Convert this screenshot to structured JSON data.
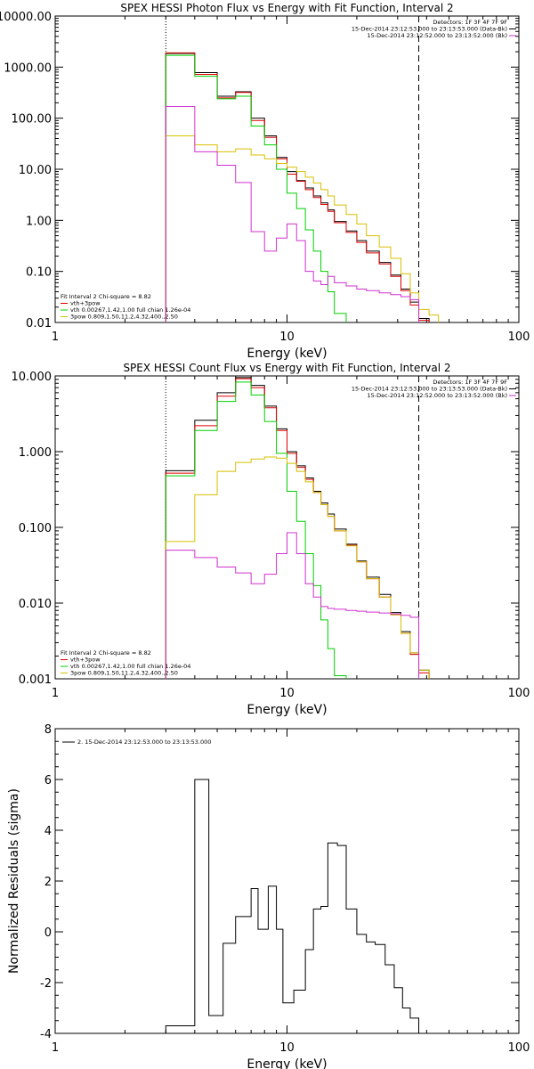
{
  "chart_data": [
    {
      "type": "line",
      "title": "SPEX HESSI Photon Flux vs Energy with Fit Function, Interval 2",
      "xlabel": "Energy (keV)",
      "ylabel": "",
      "xscale": "log",
      "yscale": "log",
      "xlim": [
        1,
        100
      ],
      "ylim": [
        0.01,
        10000
      ],
      "x_ticks": [
        "1",
        "10",
        "100"
      ],
      "y_ticks": [
        "0.01",
        "0.10",
        "1.00",
        "10.00",
        "100.00",
        "1000.00",
        "10000.00"
      ],
      "legend_top_right": [
        "Detectors: 1F 3F 4F 7F 9F",
        "15-Dec-2014 23:12:53.000 to 23:13:53.000 (Data-Bk)",
        "15-Dec-2014 23:12:52.000 to 23:13:52.000 (Bk)"
      ],
      "legend_top_right_colors": [
        "#000000",
        "#000000",
        "#d030d0"
      ],
      "fit_legend": [
        "Fit Interval 2   Chi-square = 8.82",
        "vth+3pow",
        "vth 0.00267,1.42,1.00  full chian 1.26e-04",
        "3pow 0.809,1.50,11.2,4.32,400.,2.50"
      ],
      "fit_legend_colors": [
        "",
        "#e00000",
        "#00d000",
        "#d8c000"
      ],
      "vlines": [
        3,
        37
      ],
      "edges": [
        3,
        4,
        5,
        6,
        7,
        8,
        9,
        10,
        11,
        12,
        13,
        14,
        15,
        16,
        18,
        20,
        22,
        25,
        28,
        31,
        34,
        37,
        41,
        45
      ],
      "series": [
        {
          "name": "Data-Bk",
          "color": "#000000",
          "values": [
            1850,
            780,
            270,
            330,
            100,
            45,
            17,
            9,
            6,
            4.3,
            3.0,
            2.2,
            1.6,
            0.95,
            0.62,
            0.4,
            0.25,
            0.15,
            0.085,
            0.045,
            0.025,
            0.012
          ]
        },
        {
          "name": "vth+3pow",
          "color": "#e00000",
          "values": [
            1900,
            720,
            250,
            320,
            90,
            42,
            16,
            8,
            5.8,
            4.0,
            2.8,
            2.05,
            1.5,
            0.9,
            0.58,
            0.37,
            0.23,
            0.14,
            0.08,
            0.042,
            0.022,
            0.011
          ]
        },
        {
          "name": "vth",
          "color": "#00d000",
          "values": [
            1700,
            660,
            240,
            270,
            70,
            30,
            10,
            3.4,
            1.7,
            0.65,
            0.25,
            0.1,
            0.04,
            0.015
          ]
        },
        {
          "name": "3pow",
          "color": "#d8c000",
          "values": [
            45,
            30,
            22,
            25,
            19,
            16,
            13,
            11,
            9.0,
            7.0,
            5.4,
            4.0,
            3.0,
            2.0,
            1.3,
            0.85,
            0.5,
            0.3,
            0.18,
            0.09,
            0.038,
            0.018,
            0.014
          ]
        },
        {
          "name": "Bk",
          "color": "#d030d0",
          "values": [
            170,
            22,
            12,
            5.5,
            0.6,
            0.25,
            0.45,
            0.85,
            0.4,
            0.1,
            0.065,
            0.055,
            0.08,
            0.06,
            0.052,
            0.045,
            0.042,
            0.038,
            0.035,
            0.032,
            0.028
          ]
        }
      ]
    },
    {
      "type": "line",
      "title": "SPEX HESSI Count Flux vs Energy with Fit Function, Interval 2",
      "xlabel": "Energy (keV)",
      "ylabel": "",
      "xscale": "log",
      "yscale": "log",
      "xlim": [
        1,
        100
      ],
      "ylim": [
        0.001,
        10
      ],
      "x_ticks": [
        "1",
        "10",
        "100"
      ],
      "y_ticks": [
        "0.001",
        "0.010",
        "0.100",
        "1.000",
        "10.000"
      ],
      "legend_top_right": [
        "Detectors: 1F 3F 4F 7F 9F",
        "15-Dec-2014 23:12:53.000 to 23:13:53.000 (Data-Bk)",
        "15-Dec-2014 23:12:52.000 to 23:13:52.000 (Bk)"
      ],
      "legend_top_right_colors": [
        "#000000",
        "#000000",
        "#d030d0"
      ],
      "fit_legend": [
        "Fit Interval 2   Chi-square = 8.82",
        "vth+3pow",
        "vth 0.00267,1.42,1.00  full chian 1.26e-04",
        "3pow 0.809,1.50,11.2,4.32,400.,2.50"
      ],
      "fit_legend_colors": [
        "",
        "#e00000",
        "#00d000",
        "#d8c000"
      ],
      "vlines": [
        3,
        37
      ],
      "edges": [
        3,
        4,
        5,
        6,
        7,
        8,
        9,
        10,
        11,
        12,
        13,
        14,
        15,
        16,
        18,
        20,
        22,
        25,
        28,
        31,
        34,
        37,
        41,
        45,
        50
      ],
      "series": [
        {
          "name": "Data-Bk",
          "color": "#000000",
          "values": [
            0.56,
            2.6,
            6.0,
            9.5,
            7.5,
            4.0,
            2.0,
            1.0,
            0.65,
            0.45,
            0.3,
            0.21,
            0.15,
            0.095,
            0.06,
            0.036,
            0.022,
            0.013,
            0.0075,
            0.0042,
            0.0022,
            0.0013,
            0.001
          ]
        },
        {
          "name": "vth+3pow",
          "color": "#e00000",
          "values": [
            0.52,
            2.2,
            5.4,
            9.2,
            7.0,
            3.8,
            1.9,
            0.95,
            0.62,
            0.43,
            0.29,
            0.2,
            0.14,
            0.09,
            0.058,
            0.035,
            0.021,
            0.012,
            0.007,
            0.004,
            0.0021,
            0.0012,
            0.0009
          ]
        },
        {
          "name": "vth",
          "color": "#00d000",
          "values": [
            0.48,
            1.9,
            4.6,
            8.3,
            5.6,
            2.5,
            0.95,
            0.3,
            0.12,
            0.045,
            0.017,
            0.006,
            0.0025,
            0.0011
          ]
        },
        {
          "name": "3pow",
          "color": "#d8c000",
          "values": [
            0.065,
            0.27,
            0.55,
            0.72,
            0.8,
            0.85,
            0.82,
            0.7,
            0.55,
            0.4,
            0.29,
            0.2,
            0.14,
            0.09,
            0.057,
            0.035,
            0.021,
            0.012,
            0.007,
            0.004,
            0.0022,
            0.0013,
            0.0009,
            0.0007
          ]
        },
        {
          "name": "Bk",
          "color": "#d030d0",
          "values": [
            0.05,
            0.04,
            0.03,
            0.025,
            0.018,
            0.024,
            0.045,
            0.085,
            0.045,
            0.018,
            0.012,
            0.009,
            0.0085,
            0.0083,
            0.008,
            0.0078,
            0.0076,
            0.0074,
            0.0072,
            0.0069,
            0.0065
          ]
        }
      ]
    },
    {
      "type": "line",
      "title": "",
      "xlabel": "Energy (keV)",
      "ylabel": "Normalized Residuals (sigma)",
      "xscale": "log",
      "yscale": "linear",
      "xlim": [
        1,
        100
      ],
      "ylim": [
        -4,
        8
      ],
      "x_ticks": [
        "1",
        "10",
        "100"
      ],
      "y_ticks": [
        "-4",
        "-2",
        "0",
        "2",
        "4",
        "6",
        "8"
      ],
      "legend_top_left": [
        "2. 15-Dec-2014 23:12:53.000 to 23:13:53.000"
      ],
      "edges": [
        3,
        4,
        4.6,
        5.3,
        6,
        7,
        7.5,
        8.3,
        9,
        9.6,
        10.7,
        12,
        13,
        14,
        15,
        16.5,
        18,
        20,
        22,
        24,
        26.5,
        29,
        31.5,
        34,
        37
      ],
      "series": [
        {
          "name": "",
          "color": "#000000",
          "values": [
            -3.7,
            6.0,
            -3.3,
            -0.45,
            0.6,
            1.7,
            0.1,
            1.8,
            0.1,
            -2.8,
            -2.3,
            -0.7,
            0.9,
            1.0,
            3.5,
            3.4,
            0.9,
            -0.1,
            -0.4,
            -0.5,
            -1.3,
            -2.2,
            -3.0,
            -3.4,
            -3.6
          ]
        }
      ]
    }
  ]
}
